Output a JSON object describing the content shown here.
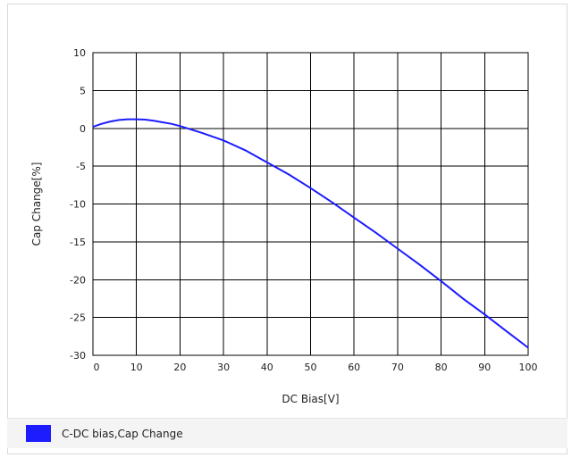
{
  "chart_data": {
    "type": "line",
    "xlabel": "DC Bias[V]",
    "ylabel": "Cap Change[%]",
    "xlim": [
      0,
      100
    ],
    "ylim": [
      -30,
      10
    ],
    "xticks": [
      0,
      10,
      20,
      30,
      40,
      50,
      60,
      70,
      80,
      90,
      100
    ],
    "yticks": [
      10,
      5,
      0,
      -5,
      -10,
      -15,
      -20,
      -25,
      -30
    ],
    "grid": true,
    "legend_position": "bottom",
    "series": [
      {
        "name": "C-DC bias,Cap Change",
        "color": "#1c1cff",
        "x": [
          0,
          2,
          4,
          6,
          8,
          10,
          12,
          14,
          16,
          18,
          20,
          25,
          30,
          35,
          40,
          45,
          50,
          55,
          60,
          65,
          70,
          75,
          80,
          85,
          90,
          95,
          100
        ],
        "y": [
          0.2,
          0.6,
          0.9,
          1.1,
          1.2,
          1.2,
          1.15,
          1.0,
          0.8,
          0.6,
          0.3,
          -0.6,
          -1.6,
          -2.9,
          -4.5,
          -6.1,
          -7.9,
          -9.8,
          -11.8,
          -13.8,
          -15.9,
          -18.0,
          -20.2,
          -22.5,
          -24.6,
          -26.8,
          -29.0
        ]
      }
    ]
  }
}
